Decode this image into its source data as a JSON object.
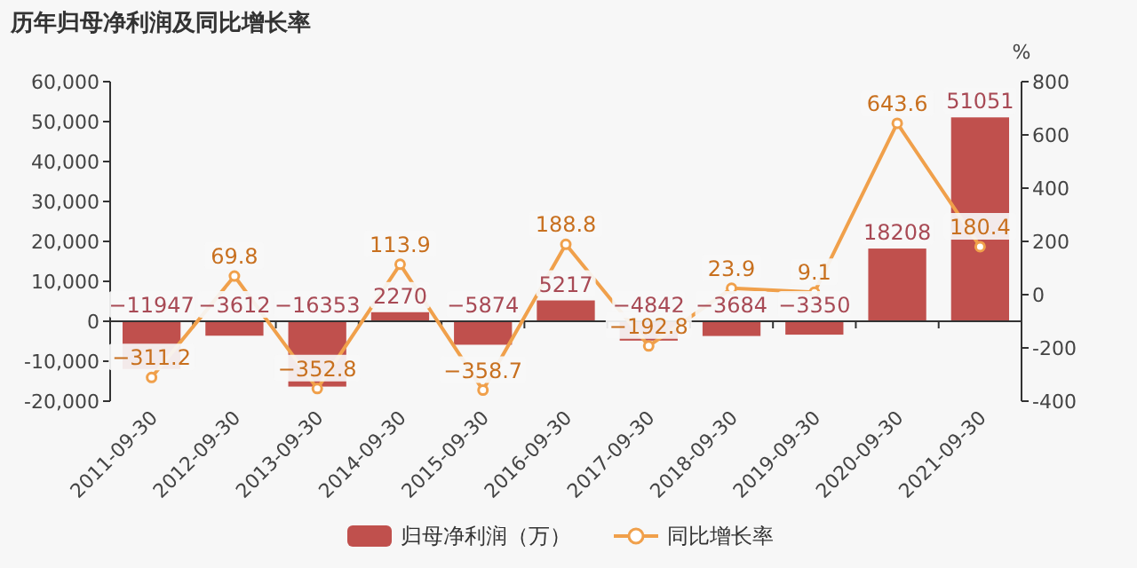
{
  "chart_data": {
    "type": "bar",
    "title": "历年归母净利润及同比增长率",
    "y2label": "%",
    "categories": [
      "2011-09-30",
      "2012-09-30",
      "2013-09-30",
      "2014-09-30",
      "2015-09-30",
      "2016-09-30",
      "2017-09-30",
      "2018-09-30",
      "2019-09-30",
      "2020-09-30",
      "2021-09-30"
    ],
    "series": [
      {
        "name": "归母净利润（万）",
        "color": "#c0504d",
        "values": [
          -11947,
          -3612,
          -16353,
          2270,
          -5874,
          5217,
          -4842,
          -3684,
          -3350,
          18208,
          51051
        ]
      },
      {
        "name": "同比增长率",
        "type": "line",
        "axis": "y2",
        "color": "#f0a04b",
        "marker": "circle",
        "values": [
          -311.2,
          69.8,
          -352.8,
          113.9,
          -358.7,
          188.8,
          -192.8,
          23.9,
          9.1,
          643.6,
          180.4
        ]
      }
    ],
    "ylim": [
      -20000,
      60000
    ],
    "yticks": [
      {
        "value": -20000,
        "label": "-20,000"
      },
      {
        "value": -10000,
        "label": "-10,000"
      },
      0,
      {
        "value": 10000,
        "label": "10,000"
      },
      {
        "value": 20000,
        "label": "20,000"
      },
      {
        "value": 30000,
        "label": "30,000"
      },
      {
        "value": 40000,
        "label": "40,000"
      },
      {
        "value": 50000,
        "label": "50,000"
      },
      {
        "value": 60000,
        "label": "60,000"
      }
    ],
    "y2lim": [
      -400,
      800
    ],
    "y2ticks": [
      -400,
      -200,
      0,
      200,
      400,
      600,
      800
    ],
    "data_labels": true,
    "legend": "bottom"
  }
}
